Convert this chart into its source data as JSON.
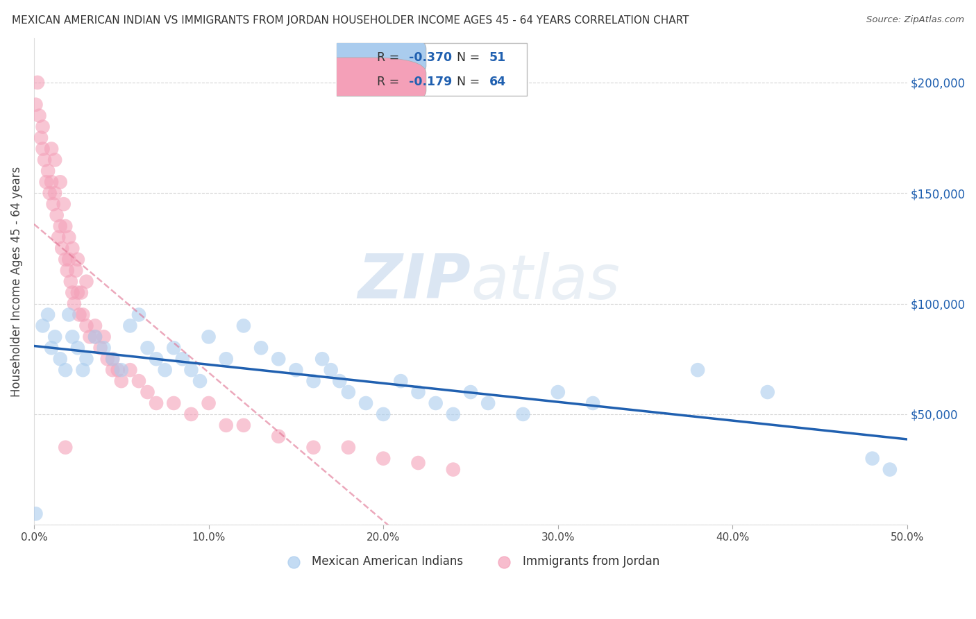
{
  "title": "MEXICAN AMERICAN INDIAN VS IMMIGRANTS FROM JORDAN HOUSEHOLDER INCOME AGES 45 - 64 YEARS CORRELATION CHART",
  "source": "Source: ZipAtlas.com",
  "ylabel": "Householder Income Ages 45 - 64 years",
  "xlim": [
    0.0,
    0.5
  ],
  "ylim": [
    0,
    220000
  ],
  "yticks": [
    0,
    50000,
    100000,
    150000,
    200000
  ],
  "ytick_labels": [
    "",
    "$50,000",
    "$100,000",
    "$150,000",
    "$200,000"
  ],
  "xticks": [
    0.0,
    0.1,
    0.2,
    0.3,
    0.4,
    0.5
  ],
  "xtick_labels": [
    "0.0%",
    "10.0%",
    "20.0%",
    "30.0%",
    "40.0%",
    "50.0%"
  ],
  "r_blue": -0.37,
  "n_blue": 51,
  "r_pink": -0.179,
  "n_pink": 64,
  "blue_color": "#aaccee",
  "pink_color": "#f4a0b8",
  "blue_line_color": "#2060b0",
  "pink_line_color": "#e07090",
  "grid_color": "#cccccc",
  "blue_scatter_x": [
    0.001,
    0.005,
    0.008,
    0.01,
    0.012,
    0.015,
    0.018,
    0.02,
    0.022,
    0.025,
    0.028,
    0.03,
    0.035,
    0.04,
    0.045,
    0.05,
    0.055,
    0.06,
    0.065,
    0.07,
    0.075,
    0.08,
    0.085,
    0.09,
    0.095,
    0.1,
    0.11,
    0.12,
    0.13,
    0.14,
    0.15,
    0.16,
    0.165,
    0.17,
    0.175,
    0.18,
    0.19,
    0.2,
    0.21,
    0.22,
    0.23,
    0.24,
    0.25,
    0.26,
    0.28,
    0.3,
    0.32,
    0.38,
    0.42,
    0.48,
    0.49
  ],
  "blue_scatter_y": [
    5000,
    90000,
    95000,
    80000,
    85000,
    75000,
    70000,
    95000,
    85000,
    80000,
    70000,
    75000,
    85000,
    80000,
    75000,
    70000,
    90000,
    95000,
    80000,
    75000,
    70000,
    80000,
    75000,
    70000,
    65000,
    85000,
    75000,
    90000,
    80000,
    75000,
    70000,
    65000,
    75000,
    70000,
    65000,
    60000,
    55000,
    50000,
    65000,
    60000,
    55000,
    50000,
    60000,
    55000,
    50000,
    60000,
    55000,
    70000,
    60000,
    30000,
    25000
  ],
  "pink_scatter_x": [
    0.001,
    0.002,
    0.003,
    0.004,
    0.005,
    0.005,
    0.006,
    0.007,
    0.008,
    0.009,
    0.01,
    0.01,
    0.011,
    0.012,
    0.012,
    0.013,
    0.014,
    0.015,
    0.015,
    0.016,
    0.017,
    0.018,
    0.018,
    0.019,
    0.02,
    0.02,
    0.021,
    0.022,
    0.022,
    0.023,
    0.024,
    0.025,
    0.025,
    0.026,
    0.027,
    0.028,
    0.03,
    0.03,
    0.032,
    0.035,
    0.038,
    0.04,
    0.042,
    0.045,
    0.048,
    0.05,
    0.055,
    0.06,
    0.065,
    0.07,
    0.08,
    0.09,
    0.1,
    0.11,
    0.12,
    0.14,
    0.16,
    0.18,
    0.2,
    0.22,
    0.24,
    0.035,
    0.045,
    0.018
  ],
  "pink_scatter_y": [
    190000,
    200000,
    185000,
    175000,
    180000,
    170000,
    165000,
    155000,
    160000,
    150000,
    170000,
    155000,
    145000,
    165000,
    150000,
    140000,
    130000,
    155000,
    135000,
    125000,
    145000,
    135000,
    120000,
    115000,
    130000,
    120000,
    110000,
    125000,
    105000,
    100000,
    115000,
    120000,
    105000,
    95000,
    105000,
    95000,
    110000,
    90000,
    85000,
    90000,
    80000,
    85000,
    75000,
    75000,
    70000,
    65000,
    70000,
    65000,
    60000,
    55000,
    55000,
    50000,
    55000,
    45000,
    45000,
    40000,
    35000,
    35000,
    30000,
    28000,
    25000,
    85000,
    70000,
    35000
  ]
}
